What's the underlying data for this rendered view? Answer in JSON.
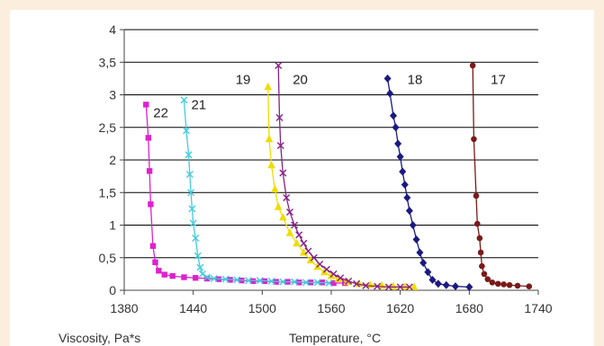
{
  "chart_data": {
    "type": "scatter",
    "title": "",
    "xlabel": "Temperature, °C",
    "ylabel": "Viscosity, Pa*s",
    "xlim": [
      1380,
      1740
    ],
    "ylim": [
      0,
      4
    ],
    "xticks": [
      "1380",
      "1440",
      "1500",
      "1560",
      "1620",
      "1680",
      "1740"
    ],
    "yticks": [
      "0",
      "0,5",
      "1",
      "1,5",
      "2",
      "2,5",
      "3",
      "3,5",
      "4"
    ],
    "grid": "horizontal",
    "series": [
      {
        "name": "22",
        "color": "#dd22cc",
        "marker": "square",
        "points": [
          [
            1399,
            2.85
          ],
          [
            1401,
            2.34
          ],
          [
            1402,
            1.83
          ],
          [
            1403,
            1.32
          ],
          [
            1405,
            0.68
          ],
          [
            1407,
            0.43
          ],
          [
            1410,
            0.3
          ],
          [
            1415,
            0.24
          ],
          [
            1422,
            0.22
          ],
          [
            1432,
            0.2
          ],
          [
            1442,
            0.19
          ],
          [
            1452,
            0.18
          ],
          [
            1462,
            0.17
          ],
          [
            1472,
            0.16
          ],
          [
            1482,
            0.15
          ],
          [
            1492,
            0.14
          ],
          [
            1502,
            0.14
          ],
          [
            1512,
            0.13
          ],
          [
            1522,
            0.13
          ],
          [
            1532,
            0.12
          ],
          [
            1542,
            0.12
          ],
          [
            1552,
            0.12
          ],
          [
            1562,
            0.11
          ],
          [
            1572,
            0.11
          ]
        ]
      },
      {
        "name": "21",
        "color": "#44ccdd",
        "marker": "x",
        "points": [
          [
            1432,
            2.92
          ],
          [
            1434,
            2.45
          ],
          [
            1436,
            2.08
          ],
          [
            1437,
            1.78
          ],
          [
            1438,
            1.5
          ],
          [
            1439,
            1.25
          ],
          [
            1440,
            1.03
          ],
          [
            1442,
            0.8
          ],
          [
            1444,
            0.53
          ],
          [
            1446,
            0.35
          ],
          [
            1448,
            0.25
          ],
          [
            1452,
            0.2
          ],
          [
            1458,
            0.18
          ],
          [
            1468,
            0.17
          ],
          [
            1478,
            0.16
          ],
          [
            1488,
            0.15
          ],
          [
            1498,
            0.15
          ],
          [
            1508,
            0.14
          ],
          [
            1518,
            0.13
          ],
          [
            1528,
            0.13
          ],
          [
            1538,
            0.12
          ],
          [
            1548,
            0.12
          ],
          [
            1558,
            0.11
          ]
        ]
      },
      {
        "name": "19",
        "color": "#eedd00",
        "marker": "triangle",
        "points": [
          [
            1505,
            3.12
          ],
          [
            1506,
            2.32
          ],
          [
            1508,
            1.92
          ],
          [
            1511,
            1.55
          ],
          [
            1514,
            1.28
          ],
          [
            1518,
            1.12
          ],
          [
            1524,
            0.88
          ],
          [
            1530,
            0.72
          ],
          [
            1536,
            0.58
          ],
          [
            1542,
            0.46
          ],
          [
            1548,
            0.36
          ],
          [
            1554,
            0.28
          ],
          [
            1560,
            0.22
          ],
          [
            1566,
            0.17
          ],
          [
            1574,
            0.13
          ],
          [
            1584,
            0.1
          ],
          [
            1594,
            0.08
          ],
          [
            1604,
            0.07
          ],
          [
            1614,
            0.06
          ],
          [
            1624,
            0.05
          ],
          [
            1632,
            0.05
          ]
        ]
      },
      {
        "name": "20",
        "color": "#882288",
        "marker": "x",
        "points": [
          [
            1514,
            3.45
          ],
          [
            1515,
            2.65
          ],
          [
            1516,
            2.22
          ],
          [
            1518,
            1.8
          ],
          [
            1521,
            1.42
          ],
          [
            1524,
            1.2
          ],
          [
            1528,
            1.0
          ],
          [
            1532,
            0.85
          ],
          [
            1536,
            0.72
          ],
          [
            1540,
            0.6
          ],
          [
            1545,
            0.5
          ],
          [
            1550,
            0.4
          ],
          [
            1556,
            0.32
          ],
          [
            1562,
            0.25
          ],
          [
            1568,
            0.19
          ],
          [
            1575,
            0.14
          ],
          [
            1582,
            0.1
          ],
          [
            1590,
            0.07
          ],
          [
            1600,
            0.06
          ],
          [
            1610,
            0.05
          ],
          [
            1620,
            0.05
          ],
          [
            1628,
            0.05
          ]
        ]
      },
      {
        "name": "18",
        "color": "#1a1a80",
        "marker": "diamond",
        "points": [
          [
            1609,
            3.25
          ],
          [
            1611,
            3.02
          ],
          [
            1614,
            2.68
          ],
          [
            1616,
            2.5
          ],
          [
            1618,
            2.25
          ],
          [
            1620,
            2.05
          ],
          [
            1622,
            1.82
          ],
          [
            1624,
            1.62
          ],
          [
            1626,
            1.42
          ],
          [
            1628,
            1.22
          ],
          [
            1631,
            1.0
          ],
          [
            1634,
            0.78
          ],
          [
            1637,
            0.58
          ],
          [
            1640,
            0.42
          ],
          [
            1644,
            0.28
          ],
          [
            1648,
            0.16
          ],
          [
            1653,
            0.1
          ],
          [
            1660,
            0.08
          ],
          [
            1668,
            0.06
          ],
          [
            1680,
            0.05
          ]
        ]
      },
      {
        "name": "17",
        "color": "#7a1a1a",
        "marker": "circle",
        "points": [
          [
            1683,
            3.45
          ],
          [
            1684,
            2.32
          ],
          [
            1686,
            1.45
          ],
          [
            1687,
            1.02
          ],
          [
            1689,
            0.8
          ],
          [
            1690,
            0.58
          ],
          [
            1691,
            0.37
          ],
          [
            1693,
            0.25
          ],
          [
            1696,
            0.17
          ],
          [
            1700,
            0.12
          ],
          [
            1705,
            0.1
          ],
          [
            1710,
            0.09
          ],
          [
            1715,
            0.08
          ],
          [
            1722,
            0.07
          ],
          [
            1732,
            0.06
          ]
        ]
      }
    ],
    "series_labels": [
      "22",
      "21",
      "19",
      "20",
      "18",
      "17"
    ]
  }
}
